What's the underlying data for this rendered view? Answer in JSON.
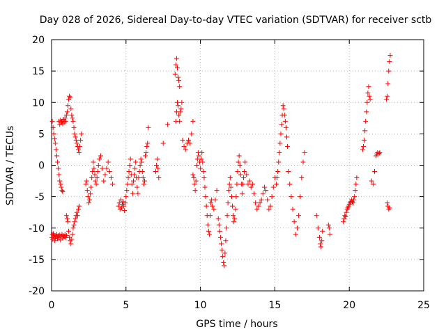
{
  "chart_data": {
    "type": "scatter",
    "title": "Day 028 of 2026, Sidereal Day-to-day VTEC variation (SDTVAR) for receiver sctb",
    "xlabel": "GPS time / hours",
    "ylabel": "SDTVAR / TECUs",
    "xlim": [
      0,
      25
    ],
    "ylim": [
      -20,
      20
    ],
    "xticks": [
      0,
      5,
      10,
      15,
      20,
      25
    ],
    "yticks": [
      -20,
      -15,
      -10,
      -5,
      0,
      5,
      10,
      15,
      20
    ],
    "xtick_labels": [
      "0",
      "5",
      "10",
      "15",
      "20",
      "25"
    ],
    "ytick_labels": [
      "-20",
      "-15",
      "-10",
      "-5",
      "0",
      "5",
      "10",
      "15",
      "20"
    ],
    "grid": true,
    "marker": "+",
    "marker_color": "#ff0000",
    "grid_color": "#a0a0a0",
    "series": [
      {
        "name": "SDTVAR",
        "x": [
          0.02,
          0.05,
          0.08,
          0.12,
          0.15,
          0.18,
          0.22,
          0.25,
          0.3,
          0.35,
          0.4,
          0.45,
          0.5,
          0.55,
          0.6,
          0.65,
          0.7,
          0.75,
          0.8,
          0.85,
          0.9,
          0.95,
          1.0,
          0.05,
          0.1,
          0.15,
          0.2,
          0.25,
          0.3,
          0.35,
          0.4,
          0.45,
          0.5,
          0.55,
          0.6,
          0.65,
          0.7,
          0.75,
          0.5,
          0.55,
          0.6,
          0.65,
          0.7,
          0.75,
          0.8,
          0.85,
          0.9,
          0.95,
          1.0,
          1.05,
          1.1,
          1.15,
          1.2,
          1.25,
          1.3,
          1.35,
          1.4,
          1.45,
          1.5,
          1.55,
          1.6,
          1.65,
          1.7,
          1.75,
          1.8,
          1.85,
          1.9,
          1.95,
          2.0,
          1.0,
          1.05,
          1.1,
          1.15,
          1.2,
          1.25,
          1.3,
          1.35,
          1.4,
          1.45,
          1.5,
          1.55,
          1.6,
          1.65,
          1.7,
          1.75,
          1.8,
          1.85,
          2.3,
          2.35,
          2.4,
          2.45,
          2.5,
          2.55,
          2.6,
          2.65,
          2.7,
          2.75,
          2.8,
          2.85,
          2.9,
          2.95,
          3.0,
          3.05,
          3.1,
          3.15,
          3.2,
          3.3,
          3.4,
          3.5,
          3.6,
          3.7,
          3.8,
          3.9,
          4.0,
          4.1,
          4.5,
          4.55,
          4.6,
          4.65,
          4.7,
          4.75,
          4.8,
          4.85,
          4.9,
          4.95,
          5.0,
          5.05,
          5.1,
          5.15,
          5.2,
          5.25,
          5.3,
          5.35,
          5.4,
          5.45,
          5.5,
          5.55,
          5.6,
          5.65,
          5.7,
          5.75,
          5.8,
          5.85,
          5.9,
          5.95,
          6.0,
          6.05,
          6.1,
          6.15,
          6.2,
          6.25,
          6.3,
          6.35,
          6.4,
          6.45,
          6.5,
          7.0,
          7.05,
          7.1,
          7.15,
          7.2,
          7.5,
          7.8,
          8.3,
          8.35,
          8.4,
          8.45,
          8.5,
          8.55,
          8.6,
          8.35,
          8.4,
          8.45,
          8.5,
          8.55,
          8.6,
          8.65,
          8.7,
          8.75,
          8.8,
          8.9,
          9.0,
          9.1,
          9.2,
          9.3,
          9.4,
          9.5,
          9.5,
          9.55,
          9.6,
          9.65,
          9.7,
          9.75,
          9.8,
          9.85,
          9.9,
          9.95,
          10.0,
          10.05,
          10.1,
          10.15,
          10.2,
          10.25,
          10.3,
          10.35,
          10.4,
          10.45,
          10.5,
          10.55,
          10.6,
          10.65,
          10.7,
          10.75,
          10.8,
          10.9,
          11.0,
          11.1,
          11.2,
          11.25,
          11.3,
          11.35,
          11.4,
          11.45,
          11.5,
          11.55,
          11.6,
          11.65,
          11.7,
          11.75,
          11.8,
          11.85,
          11.9,
          11.95,
          12.0,
          12.05,
          12.1,
          12.15,
          12.2,
          12.25,
          12.3,
          12.35,
          12.4,
          12.45,
          12.5,
          12.55,
          12.6,
          12.65,
          12.7,
          12.75,
          12.8,
          12.85,
          12.9,
          12.95,
          13.0,
          13.1,
          13.2,
          13.3,
          13.4,
          13.5,
          13.6,
          13.7,
          13.8,
          13.9,
          14.0,
          14.1,
          14.2,
          14.3,
          14.4,
          14.5,
          14.6,
          14.7,
          14.8,
          14.9,
          15.0,
          15.1,
          15.15,
          15.2,
          15.25,
          15.3,
          15.35,
          15.4,
          15.45,
          15.5,
          15.55,
          15.6,
          15.65,
          15.7,
          15.75,
          15.8,
          15.85,
          15.9,
          16.0,
          16.1,
          16.2,
          16.3,
          16.4,
          16.5,
          16.6,
          16.7,
          16.8,
          16.9,
          17.0,
          17.8,
          17.9,
          18.0,
          18.05,
          18.1,
          18.15,
          18.2,
          18.6,
          18.65,
          18.7,
          19.6,
          19.65,
          19.7,
          19.75,
          19.8,
          19.85,
          19.9,
          19.95,
          20.0,
          20.05,
          20.1,
          20.15,
          20.2,
          20.25,
          20.3,
          20.35,
          20.4,
          20.45,
          20.5,
          20.9,
          20.95,
          21.0,
          21.05,
          21.1,
          21.15,
          21.2,
          21.25,
          21.3,
          21.35,
          21.4,
          21.5,
          21.6,
          21.7,
          21.8,
          21.85,
          21.9,
          22.0,
          22.05,
          22.5,
          22.55,
          22.6,
          22.65,
          22.7,
          22.75,
          22.55,
          22.6,
          22.65,
          22.7
        ],
        "y": [
          -11.5,
          -11.0,
          -11.8,
          -10.9,
          -11.4,
          -11.2,
          -12.0,
          -11.6,
          -11.3,
          -11.0,
          -11.7,
          -11.2,
          -11.5,
          -11.1,
          -11.9,
          -11.3,
          -11.0,
          -11.6,
          -11.2,
          -11.4,
          -11.0,
          -11.5,
          -11.2,
          7.0,
          6.0,
          5.0,
          4.2,
          3.5,
          2.5,
          1.5,
          0.5,
          -0.5,
          -1.5,
          -2.5,
          -3.0,
          -3.5,
          -4.0,
          -4.2,
          7.0,
          6.5,
          7.2,
          6.8,
          7.0,
          6.6,
          7.3,
          6.9,
          7.5,
          7.0,
          8.0,
          8.5,
          9.5,
          10.5,
          11.0,
          10.8,
          9.0,
          8.0,
          7.5,
          7.0,
          6.0,
          5.0,
          4.5,
          4.0,
          3.5,
          3.0,
          2.5,
          2.0,
          3.0,
          4.0,
          5.0,
          -8.0,
          -8.5,
          -9.0,
          -10.5,
          -11.5,
          -12.0,
          -12.5,
          -11.8,
          -11.0,
          -10.0,
          -9.5,
          -9.0,
          -8.5,
          -8.0,
          -7.5,
          -8.0,
          -7.0,
          -6.5,
          -3.0,
          -2.5,
          -4.0,
          -5.0,
          -6.0,
          -5.5,
          -4.5,
          -3.5,
          -2.0,
          -1.0,
          0.5,
          -0.5,
          -1.5,
          -2.5,
          -3.0,
          -2.0,
          -1.0,
          0.0,
          1.0,
          1.5,
          -0.5,
          -2.5,
          -1.5,
          -0.5,
          0.5,
          -1.0,
          -2.0,
          -3.0,
          -6.5,
          -6.0,
          -7.0,
          -5.5,
          -6.8,
          -6.2,
          -5.8,
          -6.5,
          -7.2,
          -6.0,
          -5.0,
          -4.0,
          -3.0,
          -2.0,
          -1.0,
          0.0,
          1.0,
          -1.5,
          -3.0,
          -4.5,
          -2.5,
          -1.5,
          -0.5,
          0.5,
          -2.0,
          -3.5,
          -4.5,
          -2.0,
          -1.0,
          0.0,
          1.0,
          0.5,
          -1.0,
          -2.0,
          -3.0,
          -2.5,
          1.5,
          2.0,
          3.0,
          3.5,
          6.0,
          -1.0,
          0.0,
          1.0,
          -0.5,
          -2.0,
          3.5,
          6.5,
          14.5,
          16.0,
          17.0,
          15.5,
          14.0,
          13.5,
          12.5,
          7.0,
          8.5,
          10.0,
          9.5,
          8.0,
          7.0,
          8.5,
          9.0,
          10.0,
          4.0,
          3.0,
          2.5,
          3.5,
          4.0,
          3.5,
          5.0,
          7.0,
          -1.5,
          -2.0,
          -3.0,
          -4.0,
          -2.5,
          0.0,
          1.0,
          2.0,
          1.5,
          0.5,
          -0.5,
          1.0,
          2.0,
          0.5,
          -1.0,
          -2.0,
          -3.5,
          -5.0,
          -6.5,
          -8.0,
          -9.5,
          -10.5,
          -11.0,
          -8.0,
          -6.0,
          -5.5,
          -6.5,
          -7.0,
          -5.5,
          -4.0,
          -8.5,
          -9.5,
          -10.5,
          -11.5,
          -12.5,
          -13.5,
          -14.5,
          -15.5,
          -16.0,
          -14.0,
          -12.0,
          -10.0,
          -8.0,
          -6.0,
          -4.0,
          -3.0,
          -2.0,
          -3.5,
          -5.0,
          -6.5,
          -8.0,
          -9.0,
          -8.5,
          -7.0,
          -5.0,
          -3.0,
          -1.0,
          0.5,
          1.5,
          0.0,
          -1.5,
          -3.0,
          -4.5,
          -3.0,
          -2.0,
          -1.0,
          0.5,
          -1.5,
          -3.0,
          -2.5,
          -3.5,
          -3.0,
          -4.5,
          -6.0,
          -7.0,
          -6.5,
          -6.0,
          -5.5,
          -4.5,
          -3.5,
          -4.0,
          -5.5,
          -7.0,
          -6.5,
          -5.0,
          -3.5,
          -2.0,
          -3.0,
          -2.0,
          -1.0,
          0.5,
          2.0,
          3.5,
          5.0,
          6.5,
          8.0,
          9.5,
          9.0,
          8.0,
          7.0,
          6.0,
          4.5,
          3.0,
          -1.0,
          -3.0,
          -5.0,
          -7.0,
          -9.0,
          -11.0,
          -10.0,
          -8.0,
          -5.0,
          -2.0,
          0.5,
          2.0,
          -8.0,
          -10.0,
          -11.5,
          -12.5,
          -13.0,
          -12.0,
          -10.5,
          -9.5,
          -10.0,
          -11.0,
          -9.0,
          -8.5,
          -8.0,
          -8.2,
          -7.5,
          -7.0,
          -6.8,
          -6.5,
          -6.2,
          -6.0,
          -5.8,
          -5.5,
          -5.8,
          -6.0,
          -5.5,
          -5.0,
          -4.0,
          -3.0,
          -2.0,
          2.5,
          3.0,
          4.0,
          5.5,
          7.0,
          8.5,
          10.0,
          11.5,
          12.5,
          11.0,
          10.5,
          -2.5,
          -3.0,
          -1.0,
          1.5,
          1.8,
          2.0,
          1.9,
          2.0,
          10.5,
          11.0,
          13.0,
          15.0,
          16.5,
          17.5,
          -6.0,
          -6.5,
          -7.0,
          -6.8
        ]
      }
    ]
  }
}
